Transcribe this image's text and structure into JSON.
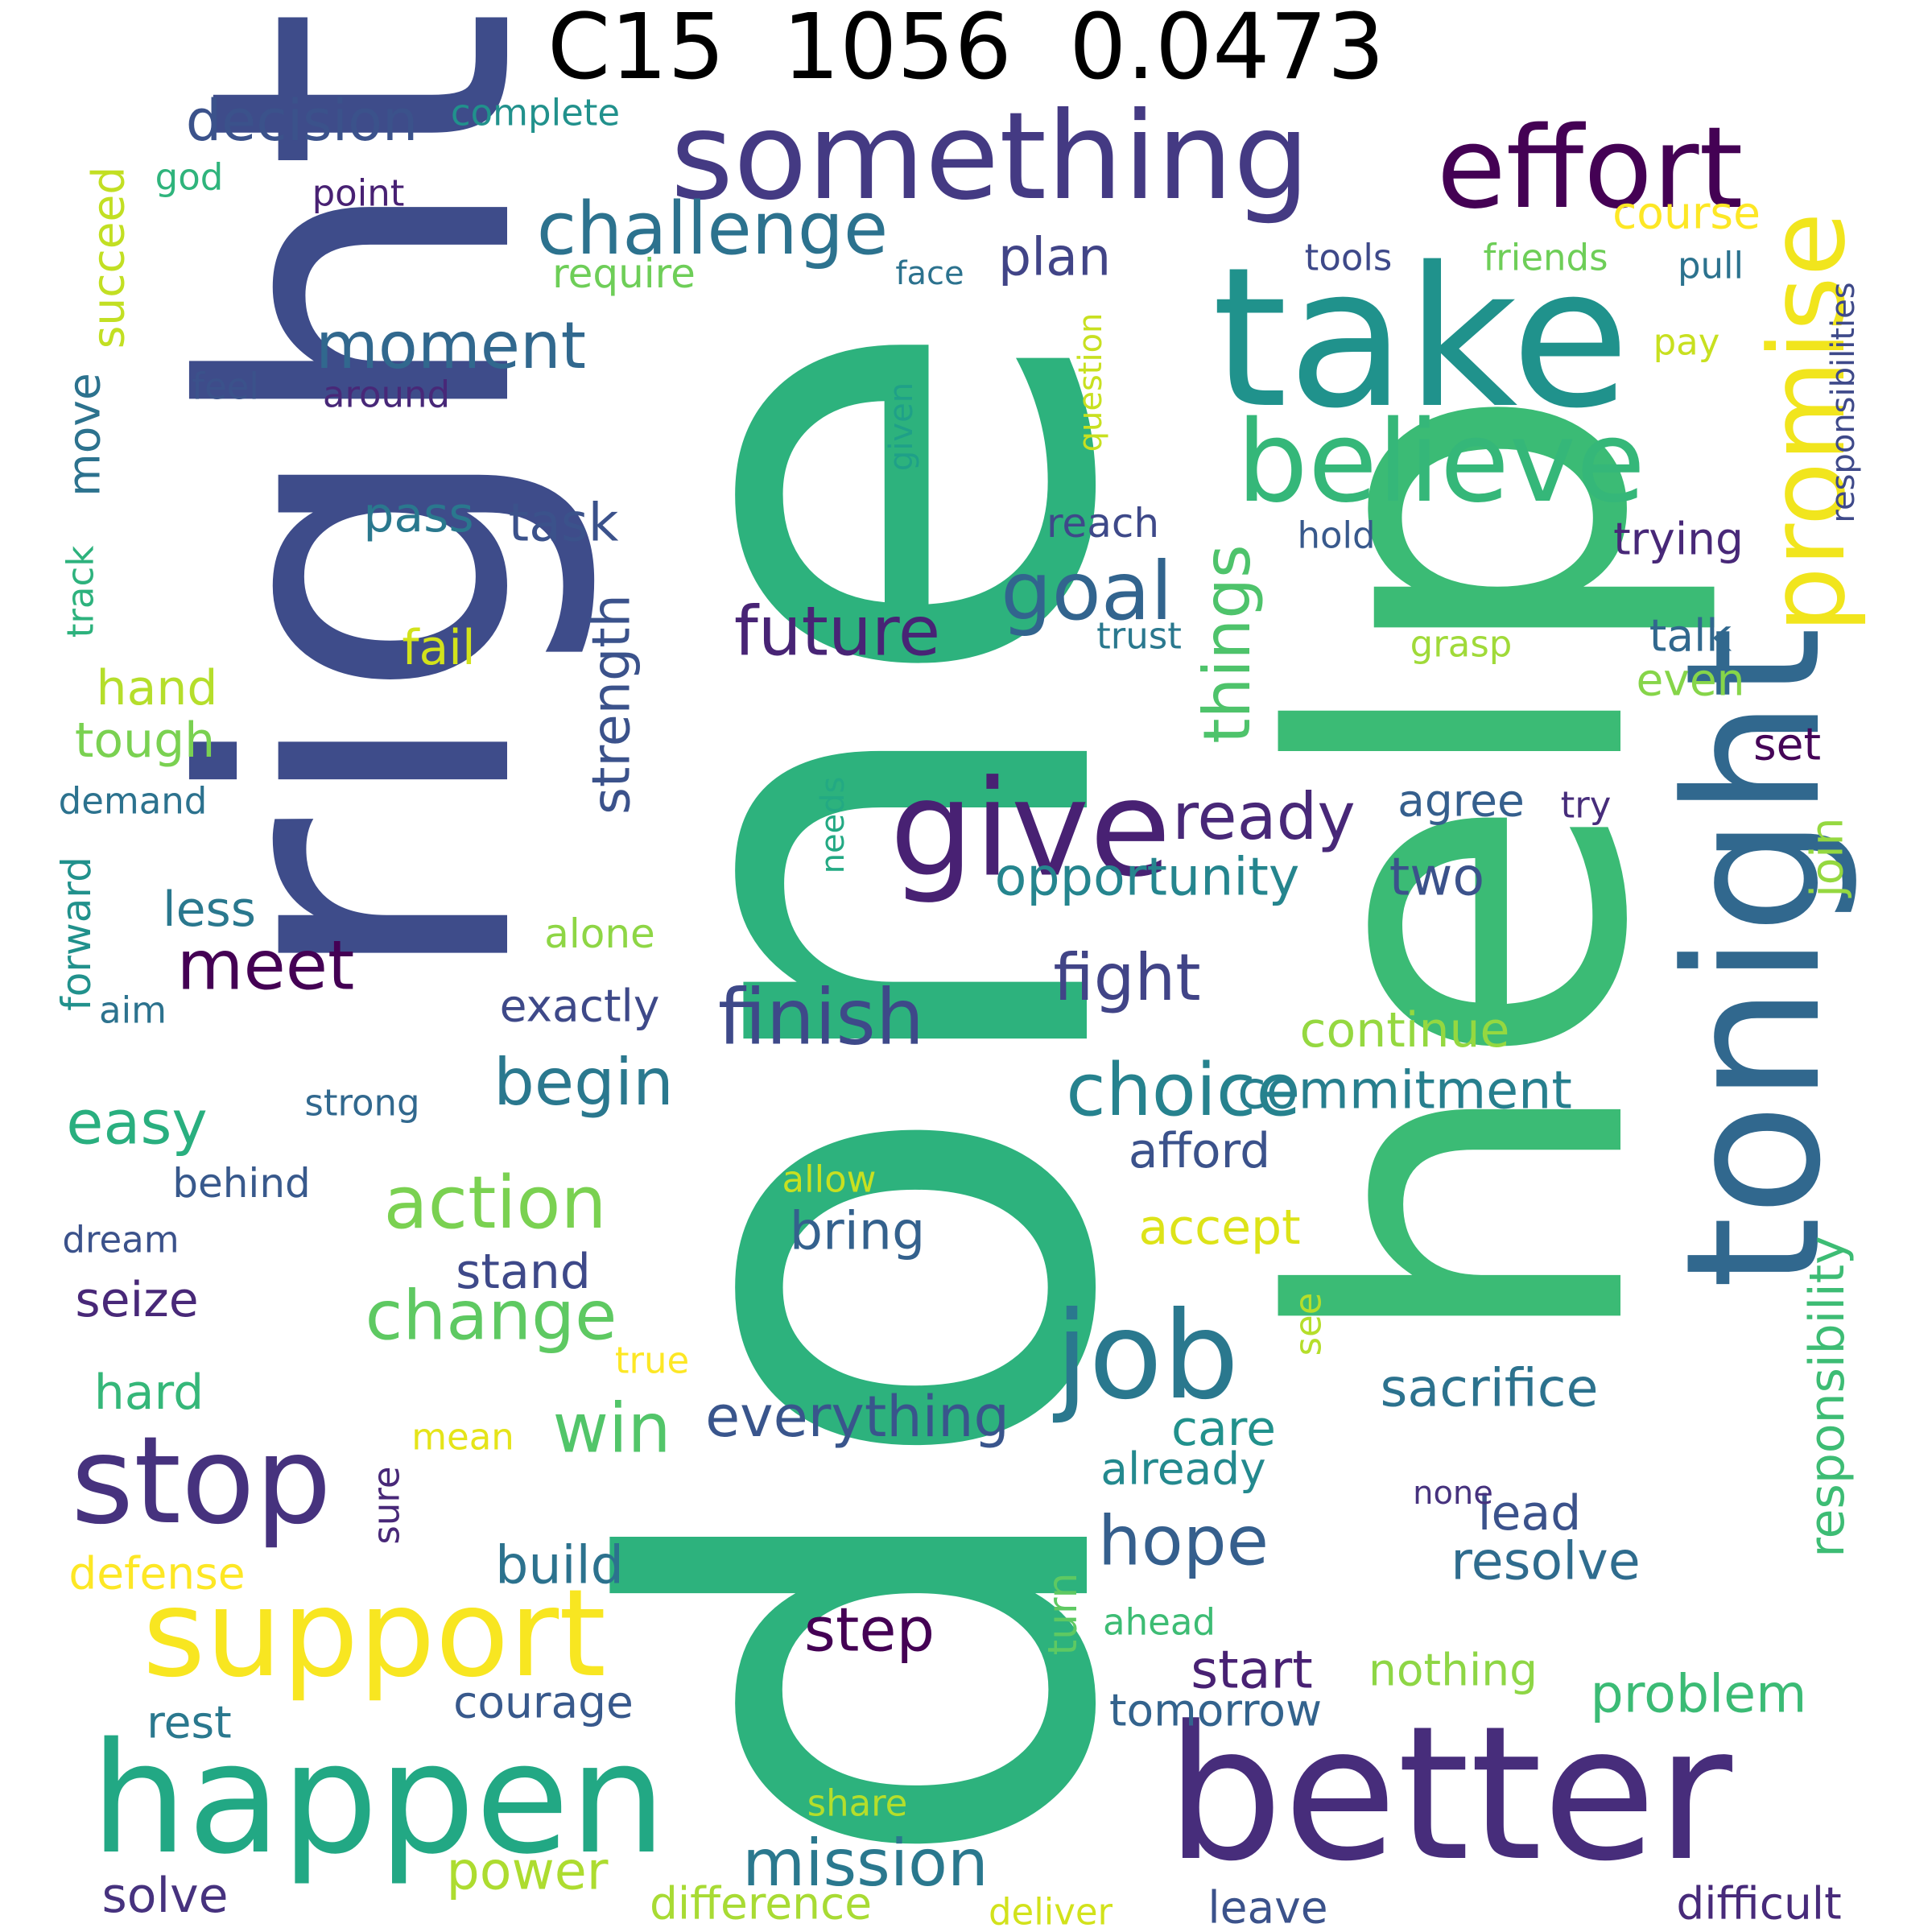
{
  "title": "C15  1056  0.0473",
  "colors": {
    "dark_purple": "#440154",
    "purple": "#472d7b",
    "indigo": "#3b528b",
    "blue": "#2c728e",
    "teal": "#21918c",
    "green_teal": "#28ae80",
    "green": "#5ec962",
    "lime": "#addc30",
    "yellow": "#fde725"
  },
  "words": [
    {
      "text": "done",
      "color": "#2db27d"
    },
    {
      "text": "right",
      "color": "#3e4c8a"
    },
    {
      "text": "help",
      "color": "#3bbb75"
    },
    {
      "text": "something",
      "color": "#443a83"
    },
    {
      "text": "take",
      "color": "#20928c"
    },
    {
      "text": "effort",
      "color": "#440154"
    },
    {
      "text": "better",
      "color": "#472d7b"
    },
    {
      "text": "happen",
      "color": "#22a884"
    },
    {
      "text": "tonight",
      "color": "#31688e"
    },
    {
      "text": "promise",
      "color": "#f1e51d"
    },
    {
      "text": "believe",
      "color": "#35b779"
    },
    {
      "text": "support",
      "color": "#f8e621"
    },
    {
      "text": "give",
      "color": "#482173"
    },
    {
      "text": "stop",
      "color": "#46327e"
    },
    {
      "text": "job",
      "color": "#2a788e"
    },
    {
      "text": "challenge",
      "color": "#2c728e"
    },
    {
      "text": "moment",
      "color": "#31688e"
    },
    {
      "text": "decision",
      "color": "#3b528b"
    },
    {
      "text": "goal",
      "color": "#32648e"
    },
    {
      "text": "future",
      "color": "#482475"
    },
    {
      "text": "ready",
      "color": "#482878"
    },
    {
      "text": "things",
      "color": "#4ec36b"
    },
    {
      "text": "meet",
      "color": "#440154"
    },
    {
      "text": "finish",
      "color": "#3e4989"
    },
    {
      "text": "choice",
      "color": "#26828e"
    },
    {
      "text": "action",
      "color": "#7ad151"
    },
    {
      "text": "change",
      "color": "#5ec962"
    },
    {
      "text": "begin",
      "color": "#2a788e"
    },
    {
      "text": "win",
      "color": "#52c569"
    },
    {
      "text": "mission",
      "color": "#2a788e"
    },
    {
      "text": "everything",
      "color": "#39558c"
    },
    {
      "text": "fight",
      "color": "#414487"
    },
    {
      "text": "hope",
      "color": "#355f8d"
    },
    {
      "text": "step",
      "color": "#440154"
    },
    {
      "text": "strength",
      "color": "#3b528b"
    },
    {
      "text": "responsibility",
      "color": "#3dbc74"
    },
    {
      "text": "commitment",
      "color": "#277f8e"
    },
    {
      "text": "opportunity",
      "color": "#25858e"
    },
    {
      "text": "sacrifice",
      "color": "#2c728e"
    },
    {
      "text": "resolve",
      "color": "#2f6c8e"
    },
    {
      "text": "problem",
      "color": "#3bbb75"
    },
    {
      "text": "easy",
      "color": "#29af7f"
    },
    {
      "text": "plan",
      "color": "#414487"
    },
    {
      "text": "task",
      "color": "#3b528b"
    },
    {
      "text": "pass",
      "color": "#2a788e"
    },
    {
      "text": "power",
      "color": "#addc30"
    },
    {
      "text": "continue",
      "color": "#95d840"
    },
    {
      "text": "build",
      "color": "#2c728e"
    },
    {
      "text": "start",
      "color": "#482173"
    },
    {
      "text": "bring",
      "color": "#34618d"
    },
    {
      "text": "two",
      "color": "#3b528b"
    },
    {
      "text": "difficult",
      "color": "#472a7a"
    },
    {
      "text": "leave",
      "color": "#3b528b"
    },
    {
      "text": "difference",
      "color": "#a8db34"
    },
    {
      "text": "solve",
      "color": "#46327e"
    },
    {
      "text": "accept",
      "color": "#dde318"
    },
    {
      "text": "afford",
      "color": "#3b528b"
    },
    {
      "text": "stand",
      "color": "#3e4989"
    },
    {
      "text": "care",
      "color": "#21918c"
    },
    {
      "text": "lead",
      "color": "#3b528b"
    },
    {
      "text": "courage",
      "color": "#38598c"
    },
    {
      "text": "tomorrow",
      "color": "#33638d"
    },
    {
      "text": "nothing",
      "color": "#8ed645"
    },
    {
      "text": "already",
      "color": "#23898e"
    },
    {
      "text": "trying",
      "color": "#482878"
    },
    {
      "text": "course",
      "color": "#fde725"
    },
    {
      "text": "succeed",
      "color": "#c2df23"
    },
    {
      "text": "seize",
      "color": "#482878"
    },
    {
      "text": "tough",
      "color": "#7ad151"
    },
    {
      "text": "hand",
      "color": "#b5de2b"
    },
    {
      "text": "fail",
      "color": "#d2e21b"
    },
    {
      "text": "less",
      "color": "#2a788e"
    },
    {
      "text": "hard",
      "color": "#35b779"
    },
    {
      "text": "exactly",
      "color": "#3e4989"
    },
    {
      "text": "move",
      "color": "#2c728e"
    },
    {
      "text": "talk",
      "color": "#31688e"
    },
    {
      "text": "even",
      "color": "#86d549"
    },
    {
      "text": "set",
      "color": "#450457"
    },
    {
      "text": "join",
      "color": "#95d840"
    },
    {
      "text": "agree",
      "color": "#355f8d"
    },
    {
      "text": "require",
      "color": "#6ece58"
    },
    {
      "text": "reach",
      "color": "#3e4989"
    },
    {
      "text": "defense",
      "color": "#fde725"
    },
    {
      "text": "rest",
      "color": "#2a788e"
    },
    {
      "text": "behind",
      "color": "#38598c"
    },
    {
      "text": "strong",
      "color": "#31688e"
    },
    {
      "text": "forward",
      "color": "#21918c"
    },
    {
      "text": "demand",
      "color": "#2c728e"
    },
    {
      "text": "dream",
      "color": "#3b528b"
    },
    {
      "text": "sure",
      "color": "#482878"
    },
    {
      "text": "see",
      "color": "#b5de2b"
    },
    {
      "text": "turn",
      "color": "#5ec962"
    },
    {
      "text": "share",
      "color": "#b5de2b"
    },
    {
      "text": "deliver",
      "color": "#d2e21b"
    },
    {
      "text": "mean",
      "color": "#e5e419"
    },
    {
      "text": "true",
      "color": "#fde725"
    },
    {
      "text": "alone",
      "color": "#8ed645"
    },
    {
      "text": "allow",
      "color": "#c8e020"
    },
    {
      "text": "ahead",
      "color": "#3dbc74"
    },
    {
      "text": "none",
      "color": "#46327e"
    },
    {
      "text": "needs",
      "color": "#23a983"
    },
    {
      "text": "question",
      "color": "#c8e020"
    },
    {
      "text": "given",
      "color": "#1fa088"
    },
    {
      "text": "grasp",
      "color": "#a0da39"
    },
    {
      "text": "trust",
      "color": "#2a788e"
    },
    {
      "text": "hold",
      "color": "#38598c"
    },
    {
      "text": "try",
      "color": "#472d7b"
    },
    {
      "text": "tools",
      "color": "#3e4989"
    },
    {
      "text": "friends",
      "color": "#6ece58"
    },
    {
      "text": "pull",
      "color": "#2c728e"
    },
    {
      "text": "pay",
      "color": "#c8e020"
    },
    {
      "text": "responsibilities",
      "color": "#3e4989"
    },
    {
      "text": "face",
      "color": "#2c728e"
    },
    {
      "text": "complete",
      "color": "#21918c"
    },
    {
      "text": "god",
      "color": "#2fb47c"
    },
    {
      "text": "point",
      "color": "#482173"
    },
    {
      "text": "feel",
      "color": "#3b528b"
    },
    {
      "text": "around",
      "color": "#482878"
    },
    {
      "text": "aim",
      "color": "#2c728e"
    },
    {
      "text": "track",
      "color": "#2db27d"
    }
  ]
}
